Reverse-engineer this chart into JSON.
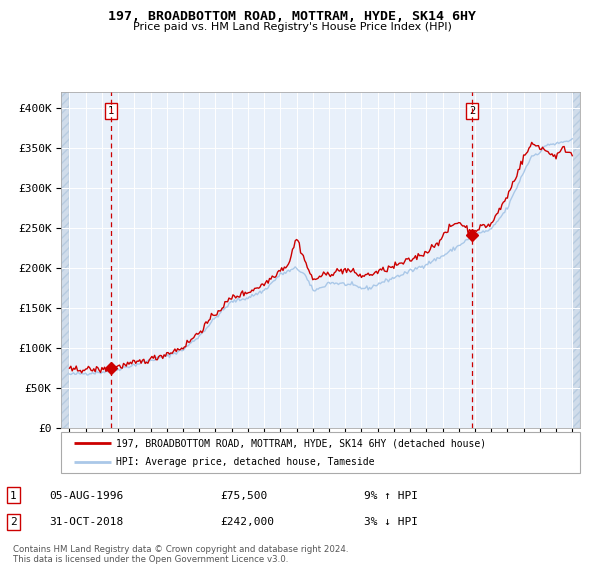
{
  "title": "197, BROADBOTTOM ROAD, MOTTRAM, HYDE, SK14 6HY",
  "subtitle": "Price paid vs. HM Land Registry's House Price Index (HPI)",
  "hpi_color": "#aac8e8",
  "price_color": "#cc0000",
  "marker_color": "#cc0000",
  "background_plot": "#e8f0fa",
  "background_hatch": "#d0dcea",
  "hatch_pattern": "////",
  "grid_color": "#ffffff",
  "sale1_year": 1996.58,
  "sale1_price": 75500,
  "sale2_year": 2018.83,
  "sale2_price": 242000,
  "sale1_label": "1",
  "sale2_label": "2",
  "legend_line1": "197, BROADBOTTOM ROAD, MOTTRAM, HYDE, SK14 6HY (detached house)",
  "legend_line2": "HPI: Average price, detached house, Tameside",
  "note1_num": "1",
  "note1_date": "05-AUG-1996",
  "note1_price": "£75,500",
  "note1_hpi": "9% ↑ HPI",
  "note2_num": "2",
  "note2_date": "31-OCT-2018",
  "note2_price": "£242,000",
  "note2_hpi": "3% ↓ HPI",
  "footer": "Contains HM Land Registry data © Crown copyright and database right 2024.\nThis data is licensed under the Open Government Licence v3.0.",
  "ylim": [
    0,
    420000
  ],
  "yticks": [
    0,
    50000,
    100000,
    150000,
    200000,
    250000,
    300000,
    350000,
    400000
  ],
  "xlim_start": 1993.5,
  "xlim_end": 2025.5,
  "data_xstart": 1994.0,
  "data_xend": 2025.0
}
